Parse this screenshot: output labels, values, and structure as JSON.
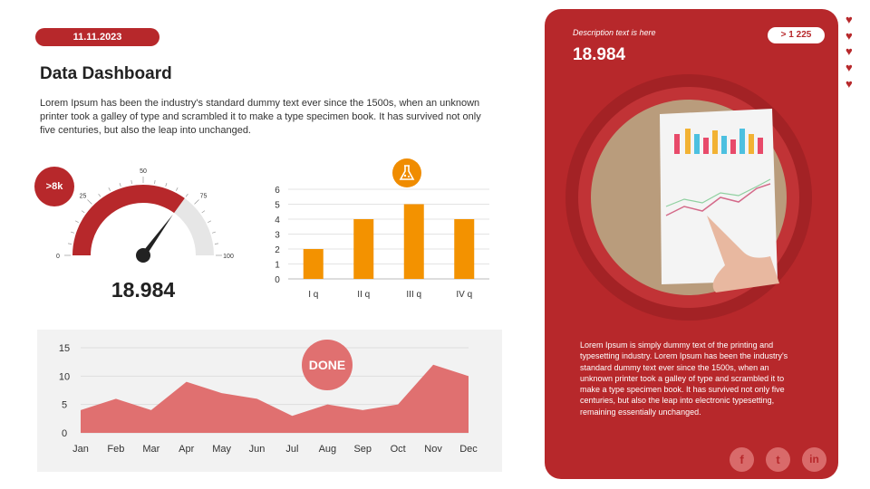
{
  "date": "11.11.2023",
  "title": "Data Dashboard",
  "intro": "Lorem Ipsum has been the industry's standard dummy text ever since the 1500s, when an unknown printer took a galley of type and scrambled it to make a type specimen book. It has survived not only five centuries, but also the leap into unchanged.",
  "gauge": {
    "badge": ">8k",
    "value_label": "18.984",
    "level": 70,
    "ticks": [
      "0",
      "25",
      "50",
      "75",
      "100"
    ],
    "fill_color": "#b7282b",
    "track_color": "#e6e6e6"
  },
  "bar_chart": {
    "type": "bar",
    "icon": "flask-icon",
    "categories": [
      "I q",
      "II q",
      "III q",
      "IV q"
    ],
    "values": [
      2,
      4,
      5,
      4
    ],
    "ylim": [
      0,
      6
    ],
    "yticks": [
      "0",
      "1",
      "2",
      "3",
      "4",
      "5",
      "6"
    ],
    "color": "#f39200",
    "grid": true
  },
  "area_chart": {
    "type": "area",
    "badge": "DONE",
    "categories": [
      "Jan",
      "Feb",
      "Mar",
      "Apr",
      "May",
      "Jun",
      "Jul",
      "Aug",
      "Sep",
      "Oct",
      "Nov",
      "Dec"
    ],
    "values": [
      4,
      6,
      4,
      9,
      7,
      6,
      3,
      5,
      4,
      5,
      12,
      10
    ],
    "ylim": [
      0,
      15
    ],
    "yticks": [
      "0",
      "5",
      "10",
      "15"
    ],
    "color": "#e07070",
    "grid": true
  },
  "card": {
    "description": "Description text is here",
    "value": "18.984",
    "pill": "> 1 225",
    "text": "Lorem Ipsum is simply dummy text of the printing and typesetting industry. Lorem Ipsum has been the industry's standard dummy text ever since the 1500s, when an unknown printer took a galley of type and scrambled it to make a type specimen book. It has survived not only five centuries, but also the leap into electronic typesetting, remaining essentially unchanged.",
    "color": "#b7282b",
    "social": [
      "f",
      "t",
      "in"
    ]
  },
  "hearts": 5
}
